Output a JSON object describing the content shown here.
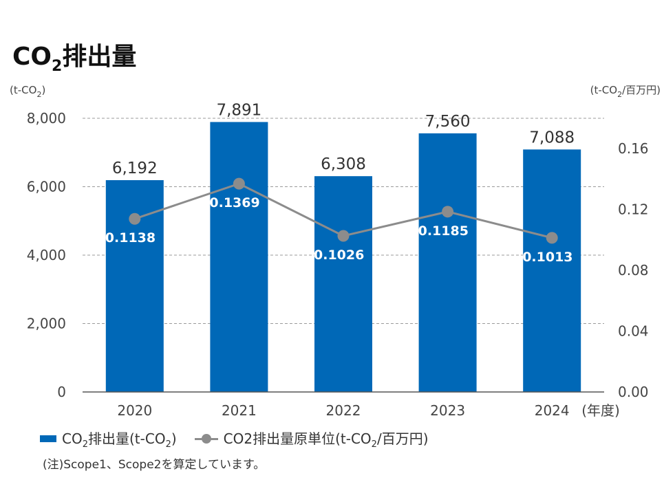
{
  "title": {
    "main": "CO",
    "sub": "2",
    "tail": "排出量"
  },
  "left_unit": {
    "pre": "(t-CO",
    "sub": "2",
    "post": ")"
  },
  "right_unit": {
    "pre": "(t-CO",
    "sub": "2",
    "post": "/百万円)"
  },
  "legend": {
    "bar": {
      "pre": "CO",
      "sub": "2",
      "post": "排出量(t-CO",
      "sub2": "2",
      "post2": ")"
    },
    "line": {
      "pre": "CO2排出量原単位(t-CO",
      "sub": "2",
      "post": "/百万円)"
    }
  },
  "note": "(注)Scope1、Scope2を算定しています。",
  "colors": {
    "bar": "#0068b7",
    "line": "#8c8c8c",
    "grid": "#999999",
    "axis": "#555555"
  },
  "chart_data": {
    "type": "bar",
    "categories": [
      "2020",
      "2021",
      "2022",
      "2023",
      "2024"
    ],
    "x_suffix": "(年度)",
    "series": [
      {
        "axis": "left",
        "type": "bar",
        "values": [
          6192,
          7891,
          6308,
          7560,
          7088
        ],
        "labels": [
          "6,192",
          "7,891",
          "6,308",
          "7,560",
          "7,088"
        ]
      },
      {
        "axis": "right",
        "type": "line",
        "values": [
          0.1138,
          0.1369,
          0.1026,
          0.1185,
          0.1013
        ],
        "labels": [
          "0.1138",
          "0.1369",
          "0.1026",
          "0.1185",
          "0.1013"
        ]
      }
    ],
    "ylim_left": [
      0,
      8000
    ],
    "yticks_left": [
      "0",
      "2,000",
      "4,000",
      "6,000",
      "8,000"
    ],
    "ytick_values_left": [
      0,
      2000,
      4000,
      6000,
      8000
    ],
    "ylim_right": [
      0,
      0.18
    ],
    "yticks_right": [
      "0.00",
      "0.04",
      "0.08",
      "0.12",
      "0.16"
    ],
    "ytick_values_right": [
      0,
      0.04,
      0.08,
      0.12,
      0.16
    ],
    "grid": true,
    "legend_position": "bottom-left"
  }
}
